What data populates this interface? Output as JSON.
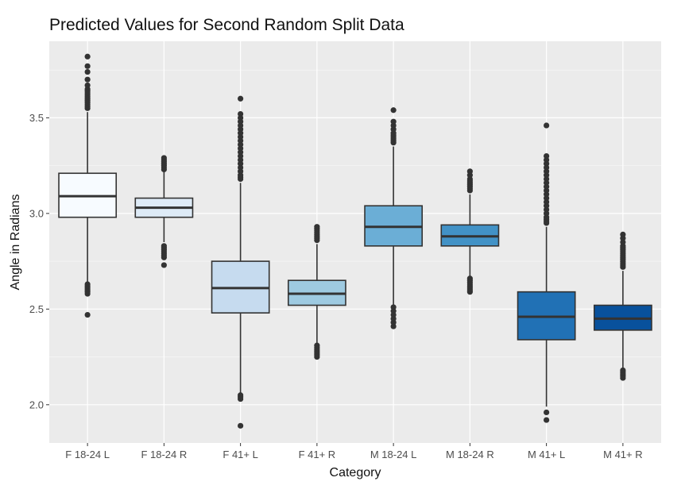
{
  "chart_data": {
    "type": "box",
    "title": "Predicted Values for Second Random Split Data",
    "xlabel": "Category",
    "ylabel": "Angle in Radians",
    "ylim": [
      1.8,
      3.9
    ],
    "yticks": [
      2.0,
      2.5,
      3.0,
      3.5
    ],
    "ytick_labels": [
      "2.0",
      "2.5",
      "3.0",
      "3.5"
    ],
    "grid": true,
    "legend": "none",
    "categories": [
      "F 18-24 L",
      "F 18-24 R",
      "F 41+ L",
      "F 41+ R",
      "M 18-24 L",
      "M 18-24 R",
      "M 41+ L",
      "M 41+ R"
    ],
    "boxes": [
      {
        "category": "F 18-24 L",
        "whisker_low": 2.64,
        "q1": 2.98,
        "median": 3.09,
        "q3": 3.21,
        "whisker_high": 3.53,
        "fill": "#F7FBFF",
        "outliers": [
          2.47,
          2.58,
          2.59,
          2.6,
          2.61,
          2.62,
          2.63,
          3.55,
          3.56,
          3.57,
          3.58,
          3.59,
          3.6,
          3.61,
          3.62,
          3.63,
          3.64,
          3.65,
          3.67,
          3.7,
          3.74,
          3.77,
          3.82
        ]
      },
      {
        "category": "F 18-24 R",
        "whisker_low": 2.85,
        "q1": 2.98,
        "median": 3.03,
        "q3": 3.08,
        "whisker_high": 3.23,
        "fill": "#DEEBF7",
        "outliers": [
          2.73,
          2.77,
          2.78,
          2.79,
          2.8,
          2.81,
          2.82,
          2.83,
          3.23,
          3.24,
          3.25,
          3.26,
          3.27,
          3.28,
          3.29
        ]
      },
      {
        "category": "F 41+ L",
        "whisker_low": 2.05,
        "q1": 2.48,
        "median": 2.61,
        "q3": 2.75,
        "whisker_high": 3.16,
        "fill": "#C6DBEF",
        "outliers": [
          1.89,
          2.03,
          2.04,
          2.05,
          3.18,
          3.19,
          3.2,
          3.22,
          3.24,
          3.26,
          3.28,
          3.3,
          3.32,
          3.34,
          3.36,
          3.38,
          3.4,
          3.42,
          3.44,
          3.46,
          3.48,
          3.5,
          3.52,
          3.6
        ]
      },
      {
        "category": "F 41+ R",
        "whisker_low": 2.32,
        "q1": 2.52,
        "median": 2.58,
        "q3": 2.65,
        "whisker_high": 2.84,
        "fill": "#9ECAE1",
        "outliers": [
          2.25,
          2.26,
          2.27,
          2.28,
          2.29,
          2.3,
          2.31,
          2.86,
          2.87,
          2.88,
          2.89,
          2.9,
          2.91,
          2.92,
          2.93
        ]
      },
      {
        "category": "M 18-24 L",
        "whisker_low": 2.52,
        "q1": 2.83,
        "median": 2.93,
        "q3": 3.04,
        "whisker_high": 3.35,
        "fill": "#6BAED6",
        "outliers": [
          2.41,
          2.43,
          2.45,
          2.47,
          2.49,
          2.51,
          3.37,
          3.38,
          3.39,
          3.4,
          3.41,
          3.42,
          3.44,
          3.46,
          3.48,
          3.54
        ]
      },
      {
        "category": "M 18-24 R",
        "whisker_low": 2.67,
        "q1": 2.83,
        "median": 2.88,
        "q3": 2.94,
        "whisker_high": 3.1,
        "fill": "#4292C6",
        "outliers": [
          2.59,
          2.6,
          2.61,
          2.62,
          2.63,
          2.64,
          2.65,
          2.66,
          3.12,
          3.13,
          3.14,
          3.15,
          3.16,
          3.17,
          3.18,
          3.2,
          3.22
        ]
      },
      {
        "category": "M 41+ L",
        "whisker_low": 1.99,
        "q1": 2.34,
        "median": 2.46,
        "q3": 2.59,
        "whisker_high": 2.93,
        "fill": "#2171B5",
        "outliers": [
          1.92,
          1.96,
          2.95,
          2.96,
          2.97,
          2.98,
          3.0,
          3.02,
          3.04,
          3.06,
          3.08,
          3.1,
          3.12,
          3.14,
          3.16,
          3.18,
          3.2,
          3.22,
          3.24,
          3.26,
          3.28,
          3.3,
          3.46
        ]
      },
      {
        "category": "M 41+ R",
        "whisker_low": 2.19,
        "q1": 2.39,
        "median": 2.45,
        "q3": 2.52,
        "whisker_high": 2.7,
        "fill": "#08519C",
        "outliers": [
          2.14,
          2.15,
          2.16,
          2.17,
          2.18,
          2.72,
          2.73,
          2.74,
          2.75,
          2.76,
          2.77,
          2.78,
          2.79,
          2.8,
          2.81,
          2.82,
          2.83,
          2.85,
          2.87,
          2.89
        ]
      }
    ],
    "colors": {
      "panel_background": "#EBEBEB",
      "grid_major": "#FFFFFF",
      "box_outline": "#333333",
      "outlier": "#333333",
      "page_background": "#FFFFFF"
    }
  }
}
